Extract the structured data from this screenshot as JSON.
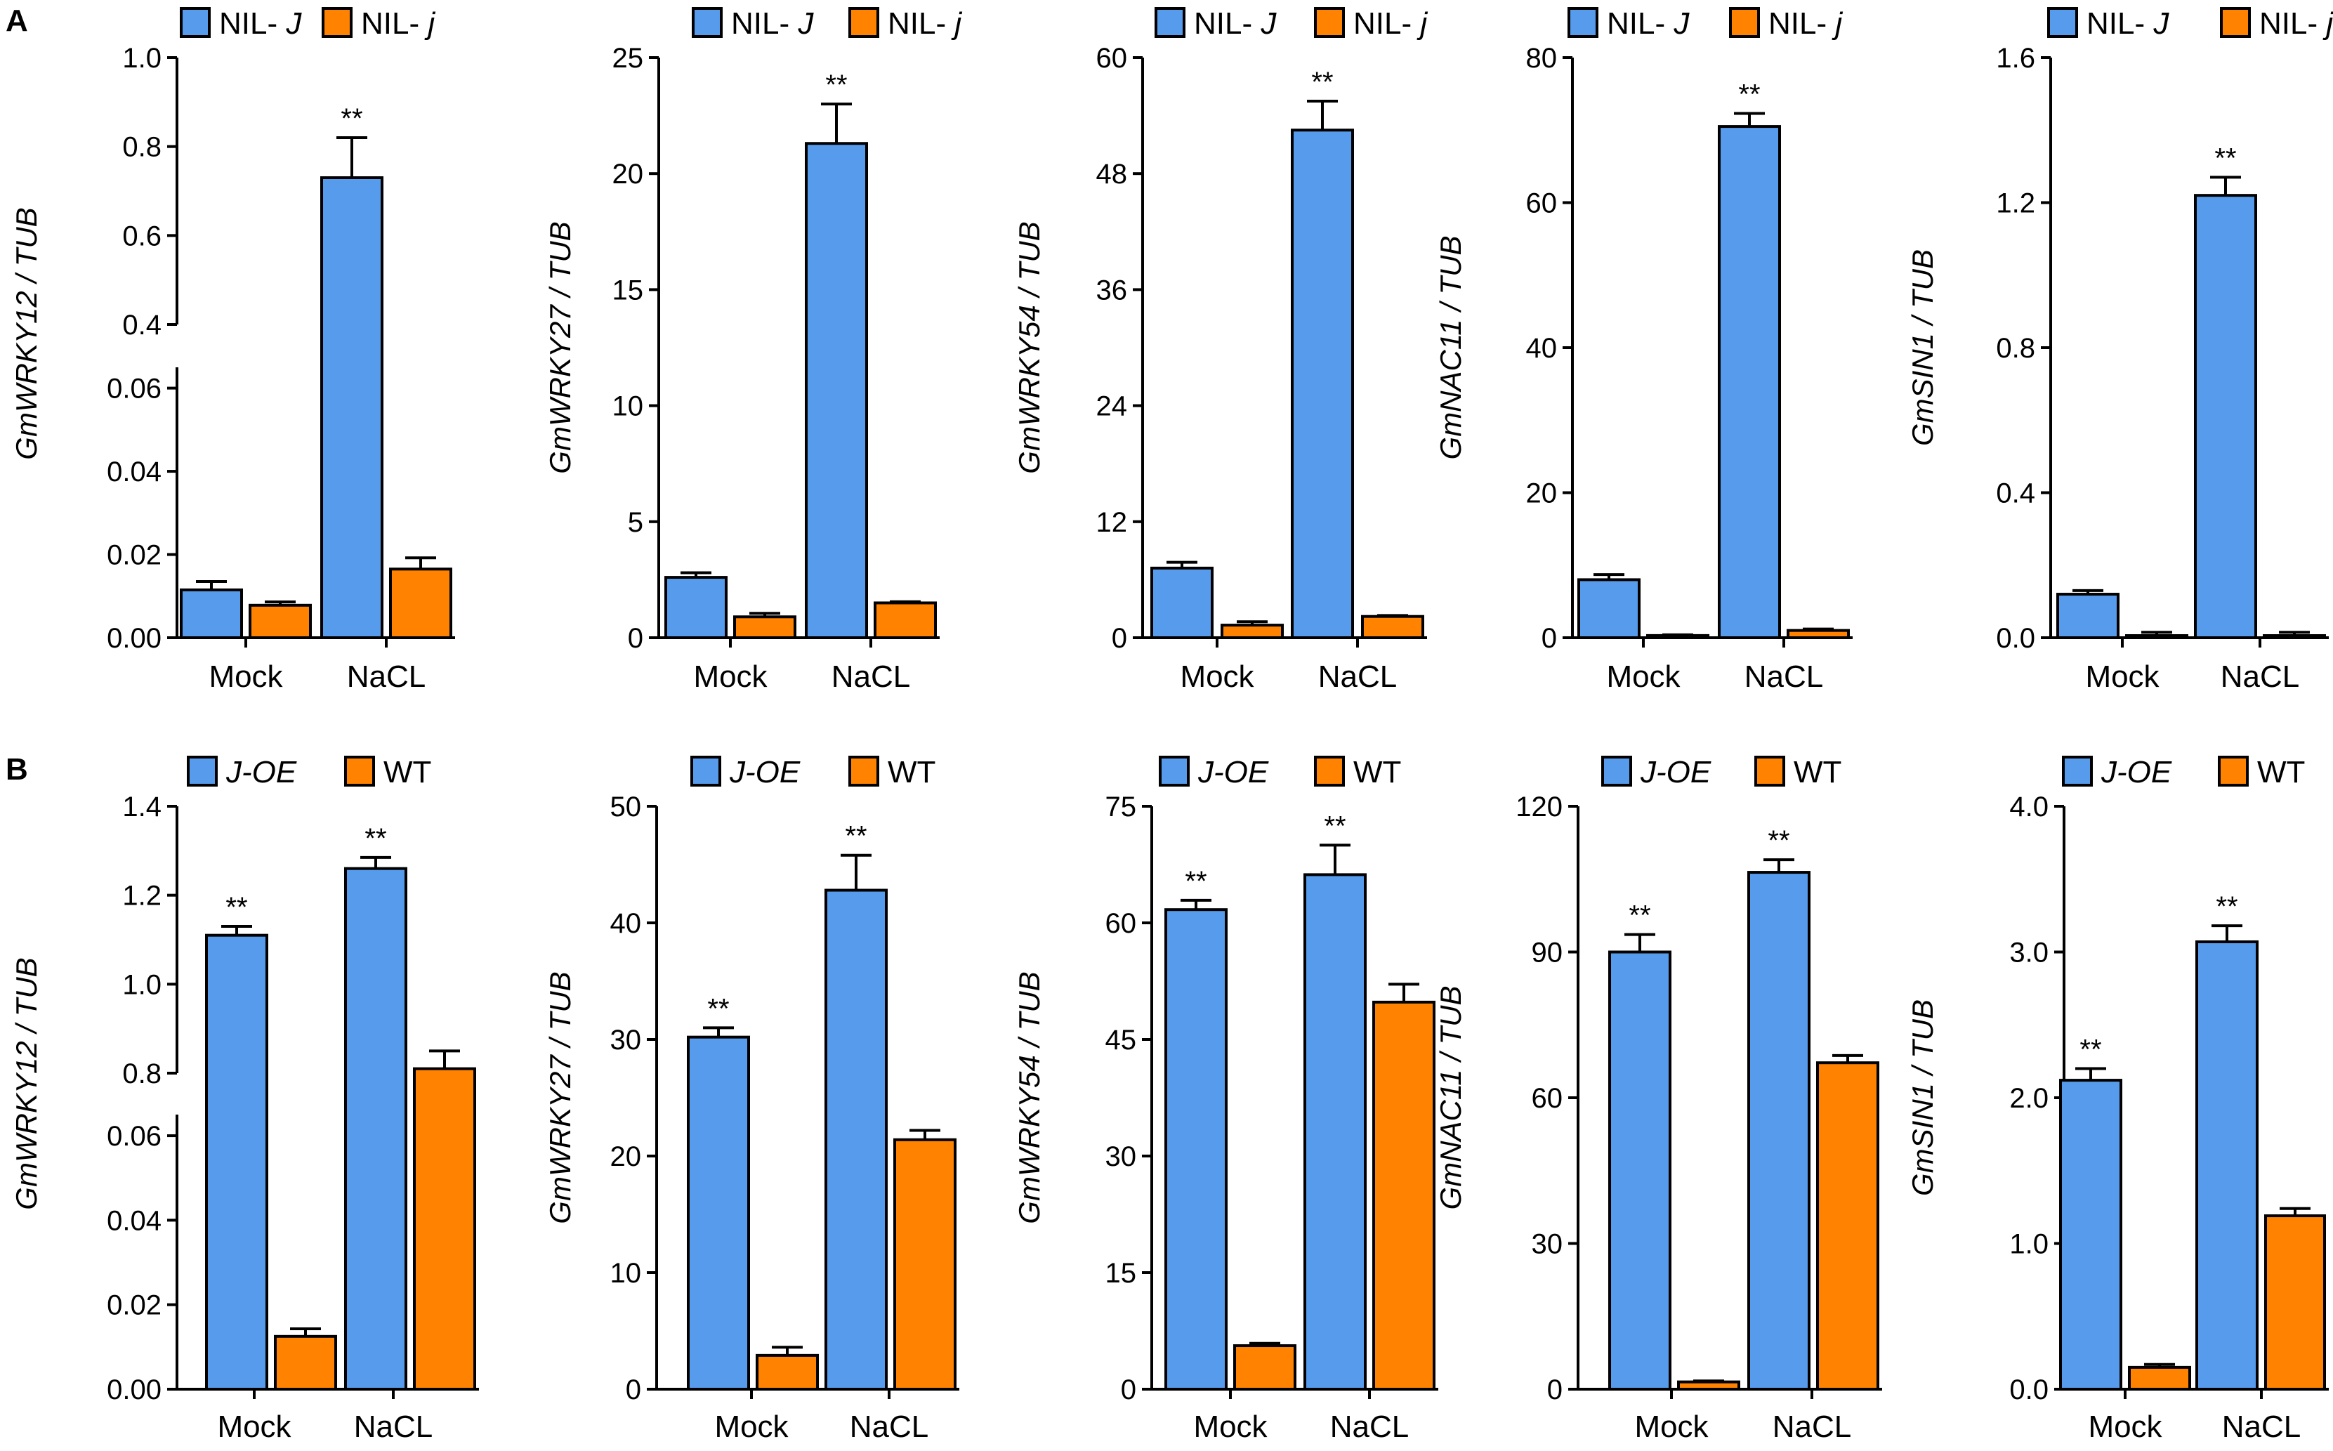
{
  "panels": [
    {
      "letter": "A"
    },
    {
      "letter": "B"
    }
  ],
  "colors": {
    "series1": "#569BEC",
    "series2": "#FF8200",
    "axis": "#000000"
  },
  "chart_data": [
    {
      "panel": "A",
      "type": "bar",
      "title": "",
      "ylabel_italic": "GmWRKY12",
      "ylabel_rest": " / TUB",
      "categories": [
        "Mock",
        "NaCL"
      ],
      "legend": [
        {
          "name": "NIL- ",
          "italic": "J"
        },
        {
          "name": "NIL- ",
          "italic": "j"
        }
      ],
      "series": [
        {
          "name": "NIL- J",
          "values": [
            0.0115,
            0.73
          ],
          "errors": [
            0.002,
            0.09
          ],
          "sig": [
            "",
            "**"
          ]
        },
        {
          "name": "NIL- j",
          "values": [
            0.0078,
            0.0165
          ],
          "errors": [
            0.0008,
            0.0027
          ],
          "sig": [
            "",
            ""
          ]
        }
      ],
      "y_broken": true,
      "ylim_lower": [
        0,
        0.065
      ],
      "ylim_upper": [
        0.4,
        1.0
      ],
      "yticks_lower": [
        "0.00",
        "0.02",
        "0.04",
        "0.06"
      ],
      "yticks_upper": [
        "0.4",
        "0.6",
        "0.8",
        "1.0"
      ]
    },
    {
      "panel": "A",
      "type": "bar",
      "title": "",
      "ylabel_italic": "GmWRKY27",
      "ylabel_rest": " / TUB",
      "categories": [
        "Mock",
        "NaCL"
      ],
      "legend": [
        {
          "name": "NIL- ",
          "italic": "J"
        },
        {
          "name": "NIL- ",
          "italic": "j"
        }
      ],
      "series": [
        {
          "name": "NIL- J",
          "values": [
            2.6,
            21.3
          ],
          "errors": [
            0.2,
            1.7
          ],
          "sig": [
            "",
            "**"
          ]
        },
        {
          "name": "NIL- j",
          "values": [
            0.9,
            1.5
          ],
          "errors": [
            0.15,
            0.05
          ],
          "sig": [
            "",
            ""
          ]
        }
      ],
      "ylim": [
        0,
        25
      ],
      "yticks": [
        "0",
        "5",
        "10",
        "15",
        "20",
        "25"
      ]
    },
    {
      "panel": "A",
      "type": "bar",
      "title": "",
      "ylabel_italic": "GmWRKY54",
      "ylabel_rest": " / TUB",
      "categories": [
        "Mock",
        "NaCL"
      ],
      "legend": [
        {
          "name": "NIL- ",
          "italic": "J"
        },
        {
          "name": "NIL- ",
          "italic": "j"
        }
      ],
      "series": [
        {
          "name": "NIL- J",
          "values": [
            7.2,
            52.5
          ],
          "errors": [
            0.6,
            3.0
          ],
          "sig": [
            "",
            "**"
          ]
        },
        {
          "name": "NIL- j",
          "values": [
            1.3,
            2.2
          ],
          "errors": [
            0.35,
            0.1
          ],
          "sig": [
            "",
            ""
          ]
        }
      ],
      "ylim": [
        0,
        60
      ],
      "yticks": [
        "0",
        "12",
        "24",
        "36",
        "48",
        "60"
      ]
    },
    {
      "panel": "A",
      "type": "bar",
      "title": "",
      "ylabel_italic": "GmNAC11",
      "ylabel_rest": " / TUB",
      "categories": [
        "Mock",
        "NaCL"
      ],
      "legend": [
        {
          "name": "NIL- ",
          "italic": "J"
        },
        {
          "name": "NIL- ",
          "italic": "j"
        }
      ],
      "series": [
        {
          "name": "NIL- J",
          "values": [
            8.0,
            70.5
          ],
          "errors": [
            0.7,
            1.8
          ],
          "sig": [
            "",
            "**"
          ]
        },
        {
          "name": "NIL- j",
          "values": [
            0.3,
            1.0
          ],
          "errors": [
            0.1,
            0.2
          ],
          "sig": [
            "",
            ""
          ]
        }
      ],
      "ylim": [
        0,
        80
      ],
      "yticks": [
        "0",
        "20",
        "40",
        "60",
        "80"
      ]
    },
    {
      "panel": "A",
      "type": "bar",
      "title": "",
      "ylabel_italic": "GmSIN1",
      "ylabel_rest": " / TUB",
      "categories": [
        "Mock",
        "NaCL"
      ],
      "legend": [
        {
          "name": "NIL- ",
          "italic": "J"
        },
        {
          "name": "NIL- ",
          "italic": "j"
        }
      ],
      "series": [
        {
          "name": "NIL- J",
          "values": [
            0.12,
            1.22
          ],
          "errors": [
            0.01,
            0.05
          ],
          "sig": [
            "",
            "**"
          ]
        },
        {
          "name": "NIL- j",
          "values": [
            0.005,
            0.005
          ],
          "errors": [
            0.01,
            0.01
          ],
          "sig": [
            "",
            ""
          ]
        }
      ],
      "ylim": [
        0,
        1.6
      ],
      "yticks": [
        "0.0",
        "0.4",
        "0.8",
        "1.2",
        "1.6"
      ]
    },
    {
      "panel": "B",
      "type": "bar",
      "title": "",
      "ylabel_italic": "GmWRKY12",
      "ylabel_rest": " / TUB",
      "categories": [
        "Mock",
        "NaCL"
      ],
      "legend": [
        {
          "name": "",
          "italic": "J-OE"
        },
        {
          "name": "WT",
          "italic": ""
        }
      ],
      "series": [
        {
          "name": "J-OE",
          "values": [
            1.11,
            1.26
          ],
          "errors": [
            0.02,
            0.025
          ],
          "sig": [
            "**",
            "**"
          ]
        },
        {
          "name": "WT",
          "values": [
            0.0125,
            0.81
          ],
          "errors": [
            0.0018,
            0.04
          ],
          "sig": [
            "",
            ""
          ]
        }
      ],
      "y_broken": true,
      "ylim_lower": [
        0,
        0.065
      ],
      "ylim_upper": [
        0.8,
        1.4
      ],
      "yticks_lower": [
        "0.00",
        "0.02",
        "0.04",
        "0.06"
      ],
      "yticks_upper": [
        "0.8",
        "1.0",
        "1.2",
        "1.4"
      ]
    },
    {
      "panel": "B",
      "type": "bar",
      "title": "",
      "ylabel_italic": "GmWRKY27",
      "ylabel_rest": " / TUB",
      "categories": [
        "Mock",
        "NaCL"
      ],
      "legend": [
        {
          "name": "",
          "italic": "J-OE"
        },
        {
          "name": "WT",
          "italic": ""
        }
      ],
      "series": [
        {
          "name": "J-OE",
          "values": [
            30.2,
            42.8
          ],
          "errors": [
            0.8,
            3.0
          ],
          "sig": [
            "**",
            "**"
          ]
        },
        {
          "name": "WT",
          "values": [
            2.9,
            21.4
          ],
          "errors": [
            0.7,
            0.8
          ],
          "sig": [
            "",
            ""
          ]
        }
      ],
      "ylim": [
        0,
        50
      ],
      "yticks": [
        "0",
        "10",
        "20",
        "30",
        "40",
        "50"
      ]
    },
    {
      "panel": "B",
      "type": "bar",
      "title": "",
      "ylabel_italic": "GmWRKY54",
      "ylabel_rest": " / TUB",
      "categories": [
        "Mock",
        "NaCL"
      ],
      "legend": [
        {
          "name": "",
          "italic": "J-OE"
        },
        {
          "name": "WT",
          "italic": ""
        }
      ],
      "series": [
        {
          "name": "J-OE",
          "values": [
            61.7,
            66.2
          ],
          "errors": [
            1.2,
            3.8
          ],
          "sig": [
            "**",
            "**"
          ]
        },
        {
          "name": "WT",
          "values": [
            5.6,
            49.8
          ],
          "errors": [
            0.3,
            2.3
          ],
          "sig": [
            "",
            ""
          ]
        }
      ],
      "ylim": [
        0,
        75
      ],
      "yticks": [
        "0",
        "15",
        "30",
        "45",
        "60",
        "75"
      ]
    },
    {
      "panel": "B",
      "type": "bar",
      "title": "",
      "ylabel_italic": "GmNAC11",
      "ylabel_rest": " / TUB",
      "categories": [
        "Mock",
        "NaCL"
      ],
      "legend": [
        {
          "name": "",
          "italic": "J-OE"
        },
        {
          "name": "WT",
          "italic": ""
        }
      ],
      "series": [
        {
          "name": "J-OE",
          "values": [
            90.0,
            106.4
          ],
          "errors": [
            3.6,
            2.6
          ],
          "sig": [
            "**",
            "**"
          ]
        },
        {
          "name": "WT",
          "values": [
            1.5,
            67.2
          ],
          "errors": [
            0.2,
            1.5
          ],
          "sig": [
            "",
            ""
          ]
        }
      ],
      "ylim": [
        0,
        120
      ],
      "yticks": [
        "0",
        "30",
        "60",
        "90",
        "120"
      ]
    },
    {
      "panel": "B",
      "type": "bar",
      "title": "",
      "ylabel_italic": "GmSIN1",
      "ylabel_rest": " / TUB",
      "categories": [
        "Mock",
        "NaCL"
      ],
      "legend": [
        {
          "name": "",
          "italic": "J-OE"
        },
        {
          "name": "WT",
          "italic": ""
        }
      ],
      "series": [
        {
          "name": "J-OE",
          "values": [
            2.12,
            3.07
          ],
          "errors": [
            0.08,
            0.11
          ],
          "sig": [
            "**",
            "**"
          ]
        },
        {
          "name": "WT",
          "values": [
            0.15,
            1.19
          ],
          "errors": [
            0.02,
            0.05
          ],
          "sig": [
            "",
            ""
          ]
        }
      ],
      "ylim": [
        0,
        4.0
      ],
      "yticks": [
        "0.0",
        "1.0",
        "2.0",
        "3.0",
        "4.0"
      ]
    }
  ]
}
